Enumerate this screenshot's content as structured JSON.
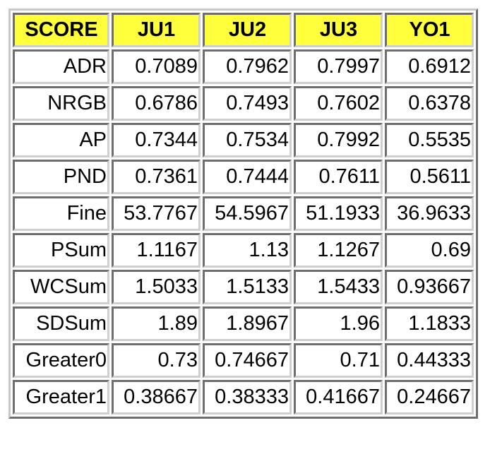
{
  "table": {
    "header_color": "#ffff3c",
    "headers": [
      "SCORE",
      "JU1",
      "JU2",
      "JU3",
      "YO1"
    ],
    "rows": [
      [
        "ADR",
        "0.7089",
        "0.7962",
        "0.7997",
        "0.6912"
      ],
      [
        "NRGB",
        "0.6786",
        "0.7493",
        "0.7602",
        "0.6378"
      ],
      [
        "AP",
        "0.7344",
        "0.7534",
        "0.7992",
        "0.5535"
      ],
      [
        "PND",
        "0.7361",
        "0.7444",
        "0.7611",
        "0.5611"
      ],
      [
        "Fine",
        "53.7767",
        "54.5967",
        "51.1933",
        "36.9633"
      ],
      [
        "PSum",
        "1.1167",
        "1.13",
        "1.1267",
        "0.69"
      ],
      [
        "WCSum",
        "1.5033",
        "1.5133",
        "1.5433",
        "0.93667"
      ],
      [
        "SDSum",
        "1.89",
        "1.8967",
        "1.96",
        "1.1833"
      ],
      [
        "Greater0",
        "0.73",
        "0.74667",
        "0.71",
        "0.44333"
      ],
      [
        "Greater1",
        "0.38667",
        "0.38333",
        "0.41667",
        "0.24667"
      ]
    ]
  }
}
